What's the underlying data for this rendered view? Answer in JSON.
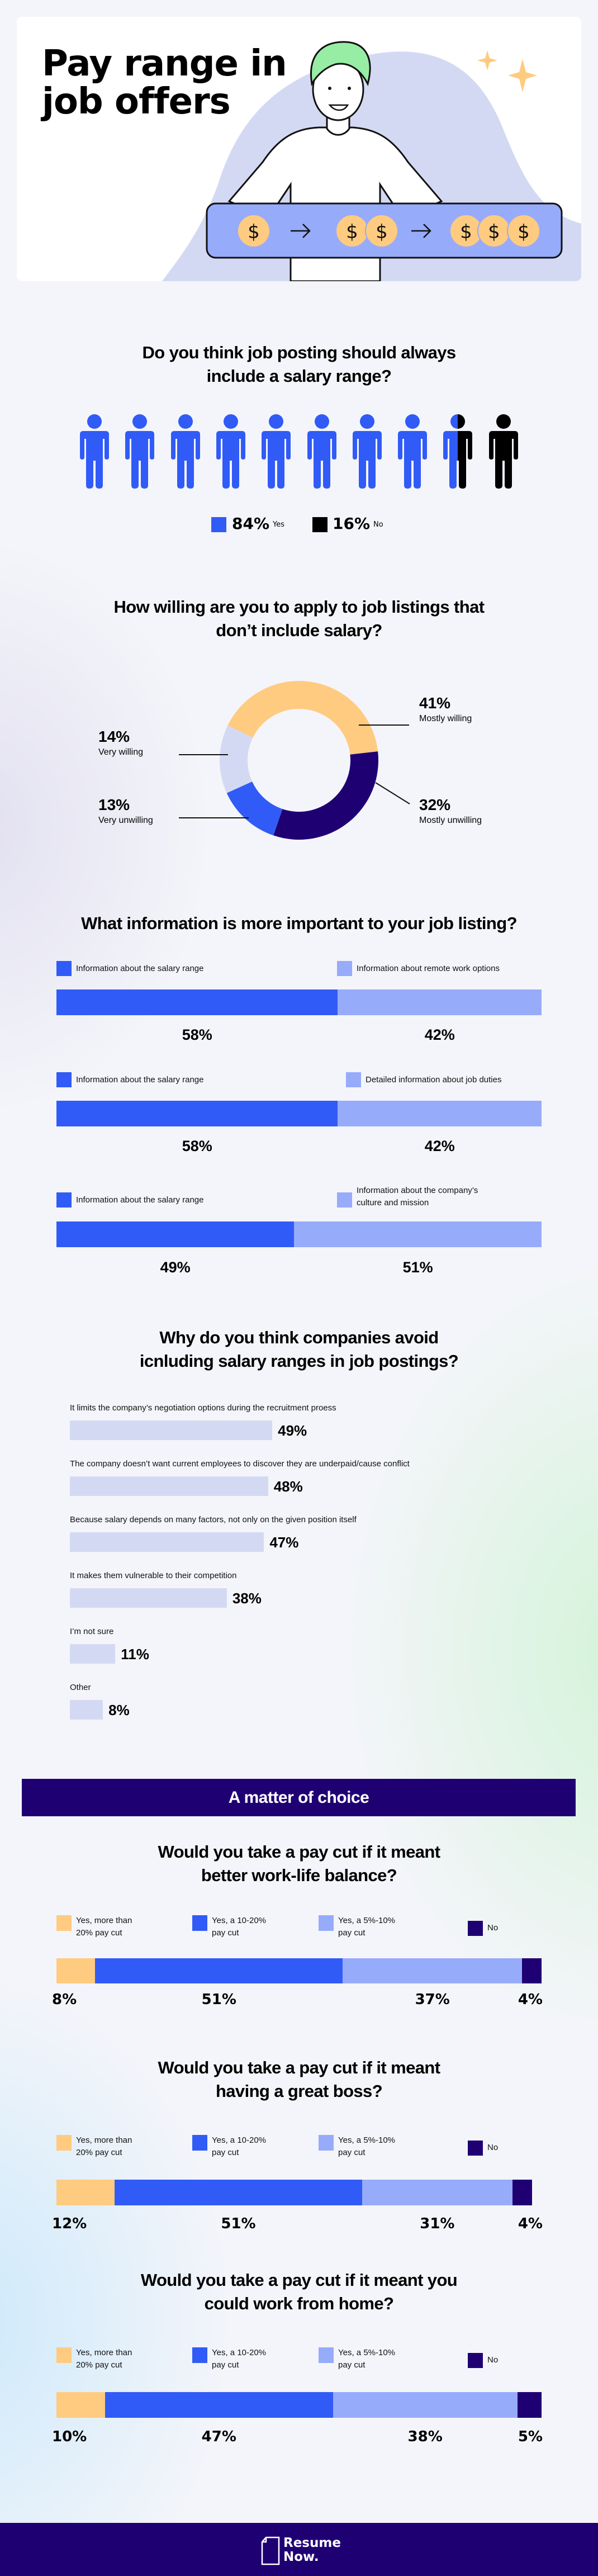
{
  "hero": {
    "title_lines": [
      "Pay range in",
      "job offers"
    ]
  },
  "section_banner": "A matter of choice",
  "footer": {
    "logo_lines": [
      "Resume",
      "Now."
    ]
  },
  "colors": {
    "blue": "#315bf7",
    "light_blue": "#97abfb",
    "lavender": "#d4d9f3",
    "yellow": "#ffcb80",
    "navy": "#1f0073",
    "black": "#000000"
  },
  "chart_data": [
    {
      "type": "bar",
      "stacked": true,
      "display": "pictogram",
      "title_lines": [
        "Do you think job posting should always",
        "include a salary range?"
      ],
      "categories": [
        "Yes",
        "No"
      ],
      "values": [
        84,
        16
      ],
      "labels": [
        "84%",
        "16%"
      ],
      "colors": [
        "#315bf7",
        "#000000"
      ],
      "icon": "person-icon",
      "icon_count": 10
    },
    {
      "type": "pie",
      "donut": true,
      "title_lines": [
        "How willing are you to apply to job listings that",
        "don’t include salary?"
      ],
      "categories": [
        "Mostly willing",
        "Mostly unwilling",
        "Very unwilling",
        "Very willing"
      ],
      "values": [
        41,
        32,
        13,
        14
      ],
      "labels": [
        "41%",
        "32%",
        "13%",
        "14%"
      ],
      "colors": [
        "#ffcb80",
        "#1f0073",
        "#315bf7",
        "#d4d9f3"
      ]
    },
    {
      "type": "bar",
      "stacked": true,
      "orientation": "horizontal",
      "title_lines": [
        "What information is more important to your job listing?"
      ],
      "rows": [
        {
          "categories": [
            "Information about the salary range",
            "Information about remote work options"
          ],
          "values": [
            58,
            42
          ],
          "labels": [
            "58%",
            "42%"
          ]
        },
        {
          "categories": [
            "Information about the salary range",
            "Detailed information about job duties"
          ],
          "values": [
            58,
            42
          ],
          "labels": [
            "58%",
            "42%"
          ]
        },
        {
          "categories": [
            "Information about the salary range",
            "Information about the company’s\nculture and mission"
          ],
          "values": [
            49,
            51
          ],
          "labels": [
            "49%",
            "51%"
          ]
        }
      ],
      "colors": [
        "#315bf7",
        "#97abfb"
      ]
    },
    {
      "type": "bar",
      "orientation": "horizontal",
      "title_lines": [
        "Why do you think companies avoid",
        "icnluding salary ranges in job postings?"
      ],
      "categories": [
        "It limits the company’s negotiation options during the recruitment proess",
        "The company doesn’t want current employees to discover they are underpaid/cause conflict",
        "Because salary depends on many factors, not only on the given position itself",
        "It makes them vulnerable to their competition",
        "I’m not sure",
        "Other"
      ],
      "values": [
        49,
        48,
        47,
        38,
        11,
        8
      ],
      "labels": [
        "49%",
        "48%",
        "47%",
        "38%",
        "11%",
        "8%"
      ],
      "colors": [
        "#d4d9f3"
      ]
    },
    {
      "type": "bar",
      "stacked": true,
      "orientation": "horizontal",
      "title_lines": [
        "Would you take a pay cut if it meant",
        "better work-life balance?"
      ],
      "categories": [
        "Yes, more than\n20% pay cut",
        "Yes, a 10-20%\npay cut",
        "Yes, a 5%-10%\npay cut",
        "No"
      ],
      "values": [
        8,
        51,
        37,
        4
      ],
      "labels": [
        "8%",
        "51%",
        "37%",
        "4%"
      ],
      "colors": [
        "#ffcb80",
        "#315bf7",
        "#97abfb",
        "#1f0073"
      ]
    },
    {
      "type": "bar",
      "stacked": true,
      "orientation": "horizontal",
      "title_lines": [
        "Would you take a pay cut if it meant",
        "having a great boss?"
      ],
      "categories": [
        "Yes, more than\n20% pay cut",
        "Yes, a 10-20%\npay cut",
        "Yes, a 5%-10%\npay cut",
        "No"
      ],
      "values": [
        12,
        51,
        31,
        4
      ],
      "labels": [
        "12%",
        "51%",
        "31%",
        "4%"
      ],
      "colors": [
        "#ffcb80",
        "#315bf7",
        "#97abfb",
        "#1f0073"
      ]
    },
    {
      "type": "bar",
      "stacked": true,
      "orientation": "horizontal",
      "title_lines": [
        "Would you take a pay cut if it meant you",
        "could work from home?"
      ],
      "categories": [
        "Yes, more than\n20% pay cut",
        "Yes, a 10-20%\npay cut",
        "Yes, a 5%-10%\npay cut",
        "No"
      ],
      "values": [
        10,
        47,
        38,
        5
      ],
      "labels": [
        "10%",
        "47%",
        "38%",
        "5%"
      ],
      "colors": [
        "#ffcb80",
        "#315bf7",
        "#97abfb",
        "#1f0073"
      ]
    }
  ]
}
